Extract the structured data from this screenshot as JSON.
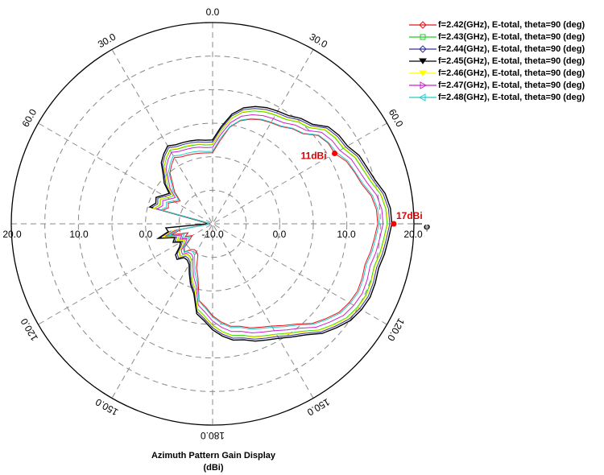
{
  "caption": {
    "line1": "Azimuth Pattern Gain Display",
    "line2": "(dBi)"
  },
  "phi_symbol": "φ",
  "colors": {
    "axis": "#000000",
    "grid": "#888888",
    "marker": "#ff0000",
    "annotation": "#dd0000"
  },
  "chart_data": {
    "type": "polar-line",
    "angle_direction": "clockwise",
    "zero_angle_at": "top",
    "r_range": [
      -10,
      20
    ],
    "radial_ticks": [
      20,
      10,
      0,
      -10,
      0,
      10,
      20
    ],
    "radial_tick_labels": [
      "20.0",
      "10.0",
      "0.0",
      "-10.0",
      "0.0",
      "10.0",
      "20.0"
    ],
    "angle_tick_labels": [
      {
        "angle": 0,
        "label": "0.0"
      },
      {
        "angle": 30,
        "label": "30.0"
      },
      {
        "angle": 60,
        "label": "60.0"
      },
      {
        "angle": 120,
        "label": "120.0"
      },
      {
        "angle": 150,
        "label": "150.0"
      },
      {
        "angle": 180,
        "label": "180.0"
      },
      {
        "angle": 210,
        "label": "150.0"
      },
      {
        "angle": 240,
        "label": "120.0"
      },
      {
        "angle": 300,
        "label": "60.0"
      },
      {
        "angle": 330,
        "label": "30.0"
      }
    ],
    "grid": true,
    "legend_position": "top-right",
    "angles_deg": [
      0,
      5,
      10,
      15,
      20,
      25,
      30,
      35,
      40,
      45,
      50,
      55,
      60,
      65,
      70,
      75,
      80,
      85,
      90,
      95,
      100,
      105,
      110,
      115,
      120,
      125,
      130,
      135,
      140,
      145,
      150,
      155,
      160,
      165,
      170,
      175,
      180,
      185,
      190,
      195,
      200,
      205,
      210,
      215,
      220,
      225,
      230,
      235,
      240,
      245,
      250,
      255,
      260,
      265,
      270,
      275,
      280,
      285,
      290,
      295,
      300,
      305,
      310,
      315,
      320,
      325,
      330,
      335,
      340,
      345,
      350,
      355
    ],
    "series": [
      {
        "name": "f=2.42(GHz), E-total, theta=90 (deg)",
        "color": "#e8141e",
        "marker": "diamond",
        "values": [
          0.6,
          2.4,
          4.6,
          5.9,
          6.6,
          7.1,
          7.4,
          7.7,
          8.5,
          9.0,
          10.5,
          11.0,
          11.0,
          12.0,
          12.5,
          13.0,
          14.0,
          14.5,
          14.6,
          14.2,
          13.9,
          13.5,
          13.7,
          13.8,
          13.5,
          13.0,
          12.0,
          11.0,
          9.5,
          8.5,
          7.6,
          7.0,
          6.5,
          5.8,
          5.5,
          4.7,
          3.7,
          2.4,
          1.6,
          -1.6,
          -3.0,
          -4.8,
          -5.2,
          -5.3,
          -5.0,
          -4.1,
          -4.5,
          -5.8,
          -6.5,
          -5.5,
          -6.1,
          -3.6,
          -5.3,
          -9.6,
          -9.6,
          -9.6,
          -9.5,
          -2.3,
          -3.0,
          -2.7,
          -3.5,
          -4.1,
          -2.6,
          -1.6,
          -0.1,
          0.7,
          1.4,
          1.0,
          0.9,
          0.8,
          0.7,
          0.6
        ]
      },
      {
        "name": "f=2.43(GHz), E-total, theta=90 (deg)",
        "color": "#22cc22",
        "marker": "square",
        "values": [
          1.8,
          3.8,
          5.9,
          7.2,
          7.9,
          8.4,
          8.7,
          9.0,
          9.8,
          10.3,
          11.8,
          12.3,
          12.5,
          13.4,
          13.8,
          14.4,
          15.4,
          15.9,
          16.0,
          15.6,
          15.3,
          14.9,
          15.1,
          15.2,
          14.9,
          14.4,
          13.4,
          12.4,
          10.9,
          9.9,
          9.0,
          8.4,
          7.9,
          7.2,
          6.9,
          6.1,
          5.1,
          3.8,
          2.9,
          0.1,
          -1.1,
          -2.5,
          -3.7,
          -4.1,
          -4.1,
          -3.2,
          -3.5,
          -4.7,
          -5.2,
          -4.2,
          -4.7,
          -2.3,
          -4.0,
          -9.3,
          -9.3,
          -9.3,
          -9.2,
          -1.0,
          -1.7,
          -1.4,
          -2.2,
          -2.8,
          -1.3,
          -0.3,
          1.2,
          2.0,
          2.7,
          2.3,
          2.2,
          2.1,
          2.0,
          1.8
        ]
      },
      {
        "name": "f=2.44(GHz), E-total, theta=90 (deg)",
        "color": "#333399",
        "marker": "diamond",
        "values": [
          2.2,
          4.2,
          6.3,
          7.6,
          8.3,
          8.8,
          9.1,
          9.4,
          10.2,
          10.7,
          12.2,
          12.7,
          12.9,
          13.8,
          14.2,
          14.8,
          15.8,
          16.3,
          16.4,
          16.0,
          15.7,
          15.3,
          15.5,
          15.6,
          15.3,
          14.8,
          13.8,
          12.8,
          11.3,
          10.3,
          9.4,
          8.8,
          8.3,
          7.6,
          7.3,
          6.5,
          5.5,
          4.2,
          3.3,
          0.5,
          -0.7,
          -2.1,
          -3.3,
          -3.7,
          -3.7,
          -2.8,
          -3.1,
          -4.3,
          -4.8,
          -3.8,
          -4.3,
          -1.9,
          -3.6,
          -9.2,
          -9.2,
          -9.2,
          -9.1,
          -0.6,
          -1.3,
          -1.0,
          -1.8,
          -2.4,
          -0.9,
          0.1,
          1.6,
          2.4,
          3.1,
          2.7,
          2.6,
          2.5,
          2.4,
          2.2
        ]
      },
      {
        "name": "f=2.45(GHz), E-total, theta=90 (deg)",
        "color": "#000000",
        "marker": "triangle-down",
        "values": [
          2.5,
          4.5,
          6.6,
          7.9,
          8.6,
          9.1,
          9.4,
          9.7,
          10.5,
          11.0,
          12.5,
          13.0,
          13.2,
          14.1,
          14.5,
          15.1,
          16.1,
          16.6,
          16.7,
          16.3,
          16.0,
          15.6,
          15.8,
          15.9,
          15.6,
          15.1,
          14.1,
          13.1,
          11.6,
          10.6,
          9.7,
          9.1,
          8.6,
          7.9,
          7.6,
          6.8,
          5.8,
          4.5,
          3.6,
          0.8,
          -0.4,
          -1.8,
          -3.0,
          -3.4,
          -3.4,
          -2.5,
          -2.8,
          -4.0,
          -4.5,
          -3.5,
          -4.0,
          -1.6,
          -3.3,
          -3.0,
          -9.1,
          -9.1,
          -9.0,
          -0.3,
          -1.0,
          -0.7,
          -1.5,
          -2.1,
          -0.6,
          0.4,
          1.9,
          2.7,
          3.4,
          3.0,
          2.9,
          2.8,
          2.7,
          2.5
        ]
      },
      {
        "name": "f=2.46(GHz), E-total, theta=90 (deg)",
        "color": "#ffff00",
        "marker": "triangle-down",
        "values": [
          1.9,
          3.9,
          6.0,
          7.3,
          8.0,
          8.5,
          8.8,
          9.1,
          9.9,
          10.4,
          11.9,
          12.4,
          12.6,
          13.5,
          13.9,
          14.5,
          15.5,
          16.0,
          16.1,
          15.7,
          15.4,
          15.0,
          15.2,
          15.3,
          15.0,
          14.5,
          13.5,
          12.5,
          11.0,
          10.0,
          9.1,
          8.5,
          8.0,
          7.3,
          7.0,
          6.2,
          5.2,
          3.9,
          3.0,
          0.2,
          -1.0,
          -2.4,
          -3.6,
          -4.0,
          -4.0,
          -3.1,
          -3.4,
          -4.6,
          -5.1,
          -4.1,
          -4.6,
          -2.2,
          -3.9,
          -9.3,
          -9.3,
          -9.3,
          -9.2,
          -0.9,
          -1.6,
          -1.3,
          -2.1,
          -2.7,
          -1.2,
          -0.2,
          1.3,
          2.1,
          2.8,
          2.4,
          2.3,
          2.2,
          2.1,
          1.9
        ]
      },
      {
        "name": "f=2.47(GHz), E-total, theta=90 (deg)",
        "color": "#cc22cc",
        "marker": "triangle-right",
        "values": [
          1.4,
          3.3,
          5.3,
          6.6,
          7.3,
          7.8,
          8.1,
          8.4,
          9.2,
          9.7,
          11.2,
          11.7,
          11.9,
          12.8,
          13.2,
          13.8,
          14.8,
          15.3,
          15.4,
          15.0,
          14.7,
          14.3,
          14.5,
          14.6,
          14.3,
          13.8,
          12.8,
          11.8,
          10.3,
          9.3,
          8.4,
          7.8,
          7.3,
          6.6,
          6.3,
          5.5,
          4.5,
          3.2,
          2.3,
          -0.5,
          -1.7,
          -3.1,
          -4.2,
          -4.5,
          -4.4,
          -3.6,
          -3.9,
          -5.1,
          -5.6,
          -4.6,
          -5.1,
          -2.7,
          -4.4,
          -9.4,
          -9.4,
          -9.4,
          -9.3,
          -1.4,
          -2.1,
          -1.8,
          -2.6,
          -3.2,
          -1.7,
          -0.7,
          0.8,
          1.6,
          2.3,
          1.9,
          1.8,
          1.7,
          1.6,
          1.4
        ]
      },
      {
        "name": "f=2.48(GHz), E-total, theta=90 (deg)",
        "color": "#22cccc",
        "marker": "triangle-left",
        "values": [
          0.8,
          2.7,
          4.7,
          6.0,
          6.7,
          7.2,
          7.5,
          7.8,
          8.6,
          9.1,
          10.6,
          11.1,
          11.3,
          12.2,
          12.6,
          13.2,
          14.2,
          14.7,
          14.8,
          14.4,
          14.1,
          13.7,
          13.9,
          14.0,
          13.7,
          13.2,
          12.2,
          11.2,
          9.7,
          8.7,
          7.8,
          7.2,
          6.7,
          6.0,
          5.7,
          4.9,
          3.9,
          2.6,
          1.7,
          -1.1,
          -2.3,
          -3.7,
          -4.6,
          -4.9,
          -4.8,
          -4.0,
          -4.3,
          -5.5,
          -6.0,
          -5.0,
          -5.5,
          -3.1,
          -4.8,
          -9.5,
          -9.5,
          -9.5,
          -9.4,
          -2.0,
          -2.7,
          -2.4,
          -3.2,
          -3.8,
          -2.3,
          -1.3,
          0.2,
          1.0,
          1.7,
          1.3,
          1.2,
          1.1,
          1.0,
          0.8
        ]
      }
    ],
    "annotations": [
      {
        "label": "11dBi",
        "angle": 60,
        "r": 11
      },
      {
        "label": "17dBi",
        "angle": 90,
        "r": 17
      }
    ]
  }
}
